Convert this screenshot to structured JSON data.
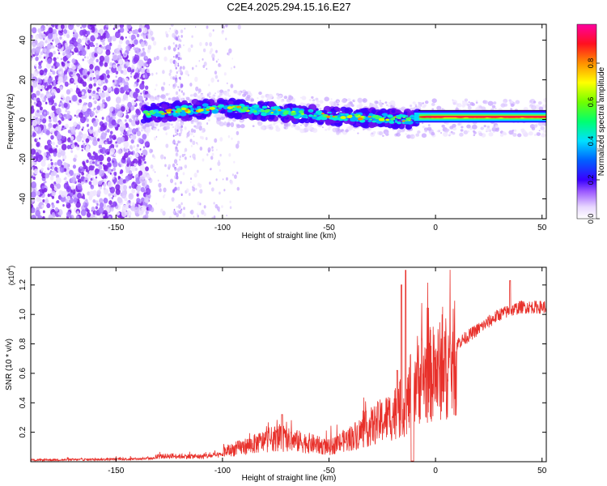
{
  "figure_title": "C2E4.2025.294.15.16.E27",
  "chart_data": [
    {
      "type": "heatmap",
      "title": "C2E4.2025.294.15.16.E27",
      "xlabel": "Height of straight line (km)",
      "ylabel": "Frequency (Hz)",
      "xlim": [
        -190,
        52
      ],
      "ylim": [
        -50,
        48
      ],
      "xticks": [
        -150,
        -100,
        -50,
        0,
        50
      ],
      "yticks": [
        -40,
        -20,
        0,
        20,
        40
      ],
      "colorbar": {
        "label": "Normalized spectral amplitude",
        "range": [
          0,
          1
        ],
        "ticks": [
          0.0,
          0.2,
          0.4,
          0.6,
          0.8
        ]
      },
      "features": {
        "noise_region_height_km": [
          -190,
          -137
        ],
        "signal_band": [
          {
            "height_km": -137,
            "frequency_hz": 3
          },
          {
            "height_km": -100,
            "frequency_hz": 6
          },
          {
            "height_km": -50,
            "frequency_hz": 2
          },
          {
            "height_km": -12,
            "frequency_hz": 0
          },
          {
            "height_km": 0,
            "frequency_hz": 1
          },
          {
            "height_km": 52,
            "frequency_hz": 1
          }
        ],
        "peak_amplitude_region_height_km": [
          -10,
          52
        ]
      }
    },
    {
      "type": "line",
      "xlabel": "Height of straight line (km)",
      "ylabel": "SNR (10 * v/v)",
      "y_multiplier": "(x10^4)",
      "xlim": [
        -190,
        52
      ],
      "ylim": [
        0,
        1.32
      ],
      "xticks": [
        -150,
        -100,
        -50,
        0,
        50
      ],
      "yticks": [
        0.2,
        0.4,
        0.6,
        0.8,
        1.0,
        1.2
      ],
      "color": "#e8302a",
      "envelope": [
        {
          "x": -190,
          "y": 0.01
        },
        {
          "x": -140,
          "y": 0.03
        },
        {
          "x": -125,
          "y": 0.06
        },
        {
          "x": -110,
          "y": 0.05
        },
        {
          "x": -100,
          "y": 0.08
        },
        {
          "x": -85,
          "y": 0.15
        },
        {
          "x": -75,
          "y": 0.2
        },
        {
          "x": -60,
          "y": 0.16
        },
        {
          "x": -50,
          "y": 0.12
        },
        {
          "x": -40,
          "y": 0.2
        },
        {
          "x": -30,
          "y": 0.3
        },
        {
          "x": -20,
          "y": 0.4
        },
        {
          "x": -13,
          "y": 0.5
        },
        {
          "x": -10,
          "y": 0.7
        },
        {
          "x": 0,
          "y": 0.75
        },
        {
          "x": 10,
          "y": 0.85
        },
        {
          "x": 20,
          "y": 0.95
        },
        {
          "x": 30,
          "y": 1.05
        },
        {
          "x": 40,
          "y": 1.1
        },
        {
          "x": 52,
          "y": 1.1
        }
      ],
      "peaks": [
        {
          "x": -72,
          "y": 0.32
        },
        {
          "x": -18,
          "y": 0.62
        },
        {
          "x": -16,
          "y": 1.2
        },
        {
          "x": -14,
          "y": 1.3
        },
        {
          "x": -11,
          "y": 0.92
        },
        {
          "x": 35,
          "y": 1.23
        }
      ]
    }
  ]
}
